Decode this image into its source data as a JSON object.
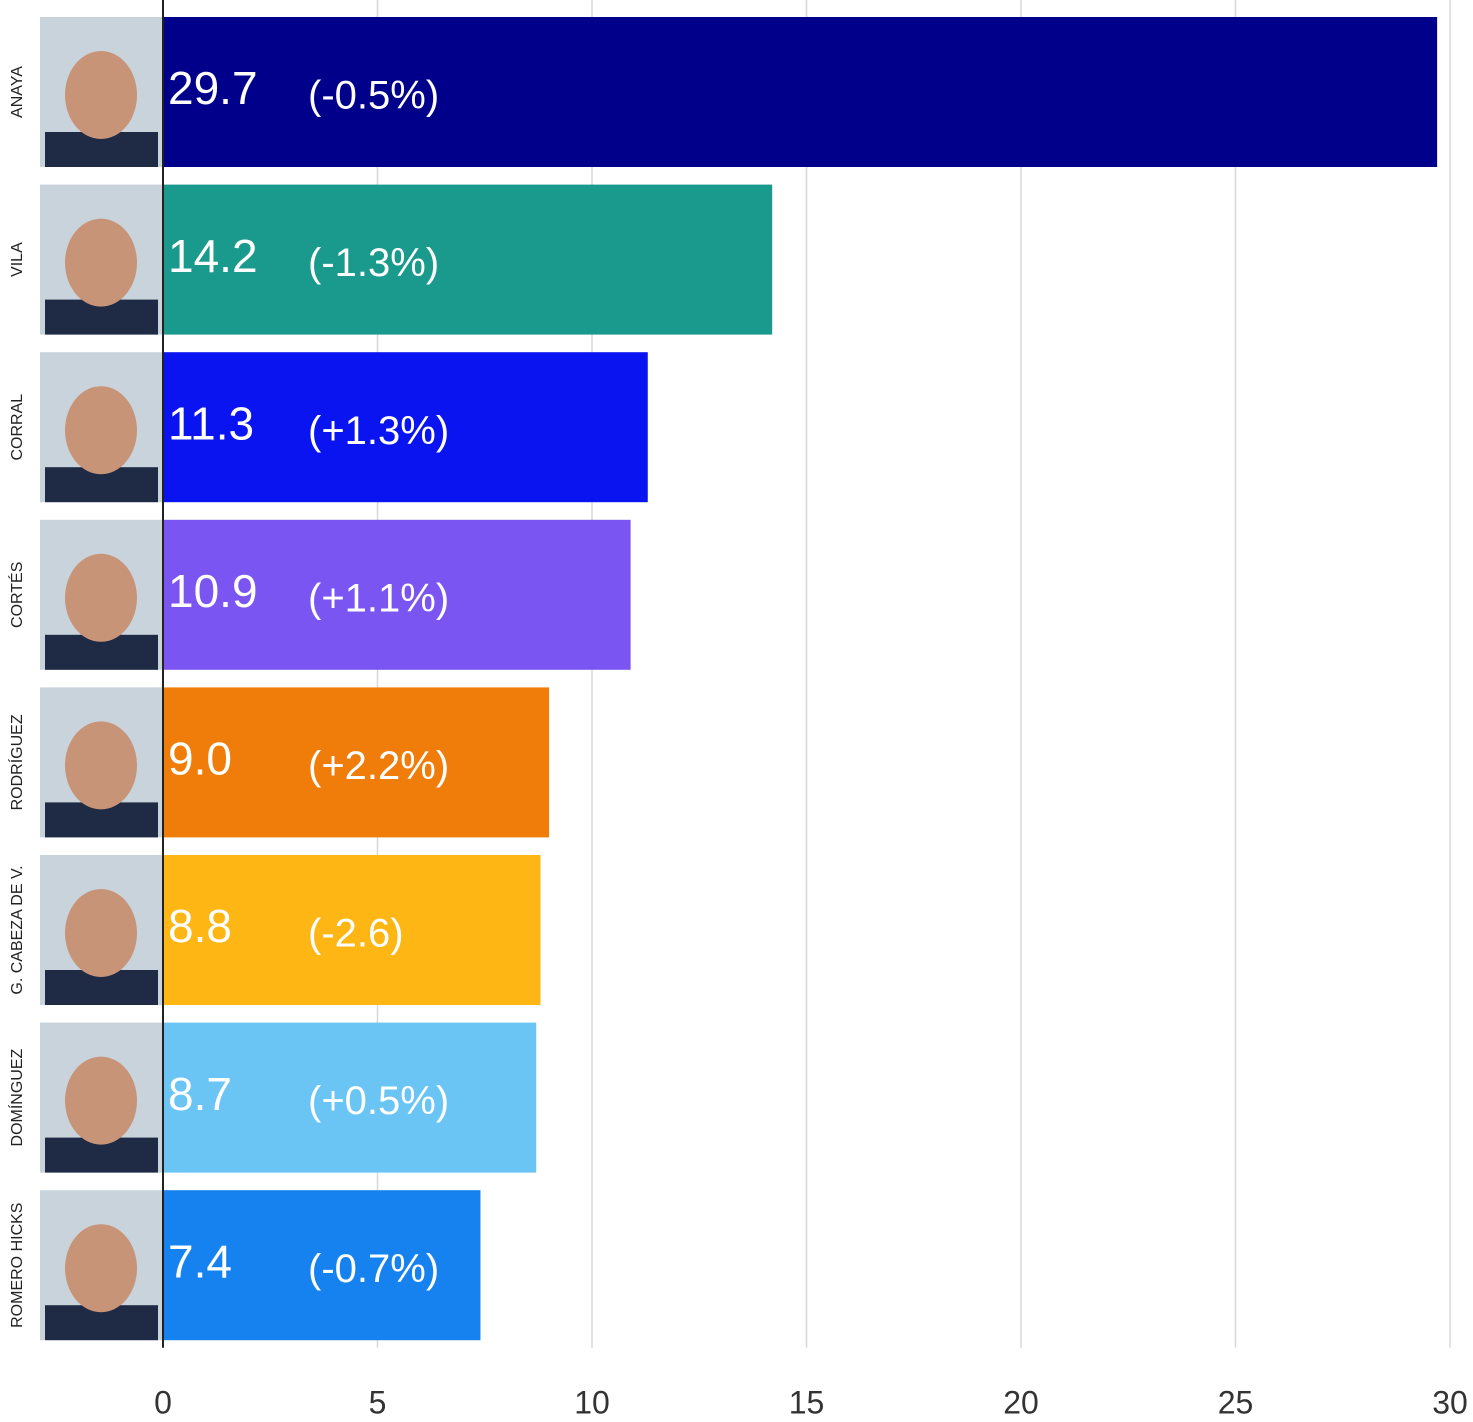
{
  "chart_data": {
    "type": "barh",
    "categories": [
      "ANAYA",
      "VILA",
      "CORRAL",
      "CORTÉS",
      "RODRÍGUEZ",
      "G. CABEZA DE V.",
      "DOMÍNGUEZ",
      "ROMERO HICKS"
    ],
    "values": [
      29.7,
      14.2,
      11.3,
      10.9,
      9.0,
      8.8,
      8.7,
      7.4
    ],
    "value_labels": [
      "29.7",
      "14.2",
      "11.3",
      "10.9",
      "9.0",
      "8.8",
      "8.7",
      "7.4"
    ],
    "changes": [
      "(-0.5%)",
      "(-1.3%)",
      "(+1.3%)",
      "(+1.1%)",
      "(+2.2%)",
      "(-2.6)",
      "(+0.5%)",
      "(-0.7%)"
    ],
    "colors": [
      "#00008b",
      "#1a9a8c",
      "#0a14f0",
      "#7b55f2",
      "#f07d0a",
      "#fdb614",
      "#6ac4f4",
      "#1682f0"
    ],
    "xlim": [
      0,
      30
    ],
    "xticks": [
      0,
      5,
      10,
      15,
      20,
      25,
      30
    ],
    "grid": true
  }
}
